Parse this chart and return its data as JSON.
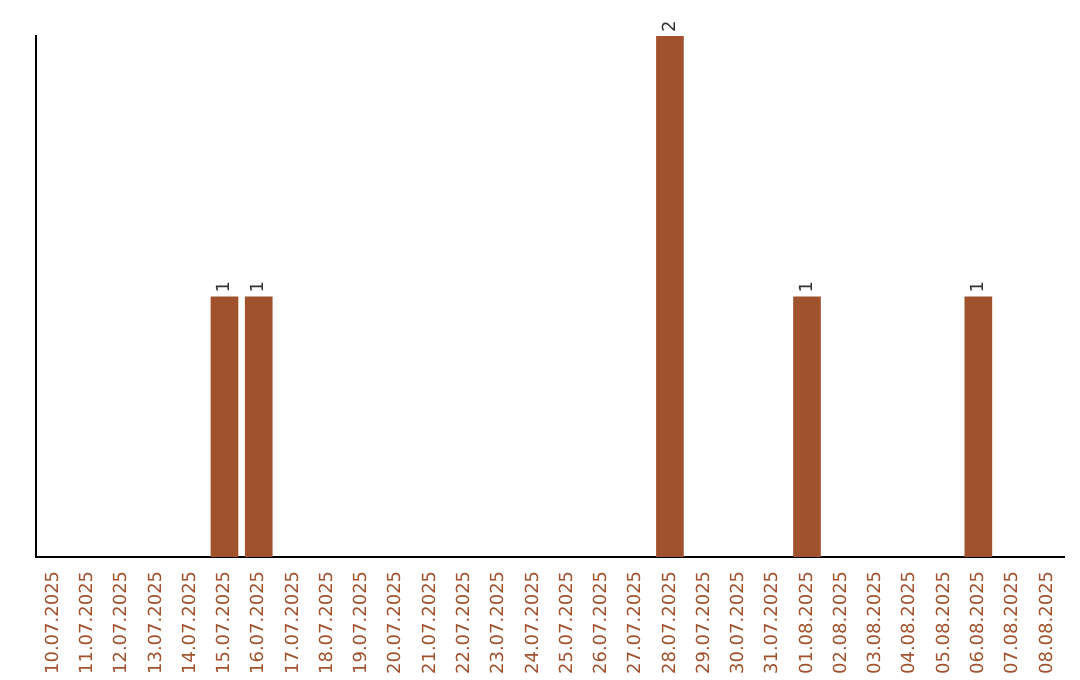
{
  "chart_data": {
    "type": "bar",
    "categories": [
      "10.07.2025",
      "11.07.2025",
      "12.07.2025",
      "13.07.2025",
      "14.07.2025",
      "15.07.2025",
      "16.07.2025",
      "17.07.2025",
      "18.07.2025",
      "19.07.2025",
      "20.07.2025",
      "21.07.2025",
      "22.07.2025",
      "23.07.2025",
      "24.07.2025",
      "25.07.2025",
      "26.07.2025",
      "27.07.2025",
      "28.07.2025",
      "29.07.2025",
      "30.07.2025",
      "31.07.2025",
      "01.08.2025",
      "02.08.2025",
      "03.08.2025",
      "04.08.2025",
      "05.08.2025",
      "06.08.2025",
      "07.08.2025",
      "08.08.2025"
    ],
    "values": [
      0,
      0,
      0,
      0,
      0,
      1,
      1,
      0,
      0,
      0,
      0,
      0,
      0,
      0,
      0,
      0,
      0,
      0,
      2,
      0,
      0,
      0,
      1,
      0,
      0,
      0,
      0,
      1,
      0,
      0
    ],
    "value_labels": [
      null,
      null,
      null,
      null,
      null,
      "1",
      "1",
      null,
      null,
      null,
      null,
      null,
      null,
      null,
      null,
      null,
      null,
      null,
      "2",
      null,
      null,
      null,
      "1",
      null,
      null,
      null,
      null,
      "1",
      null,
      null
    ],
    "color": "#a0522d",
    "grid": false,
    "legend": false,
    "tick_labels": "x"
  }
}
